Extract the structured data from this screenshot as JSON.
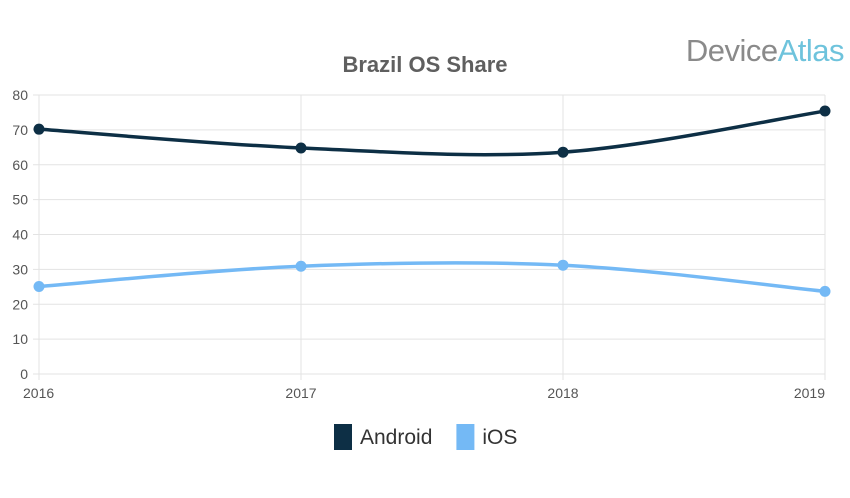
{
  "brand": {
    "logo_part1": "Device",
    "logo_part2": "Atlas",
    "logo_color1": "#8a8a8a",
    "logo_color2": "#6ec3dc"
  },
  "chart_data": {
    "type": "line",
    "title": "Brazil OS Share",
    "xlabel": "",
    "ylabel": "",
    "categories": [
      "2016",
      "2017",
      "2018",
      "2019"
    ],
    "ylim": [
      0,
      80
    ],
    "yticks": [
      0,
      10,
      20,
      30,
      40,
      50,
      60,
      70,
      80
    ],
    "grid": true,
    "legend_position": "bottom",
    "smooth": true,
    "series": [
      {
        "name": "Android",
        "color": "#0d2f45",
        "values": [
          70.2,
          64.8,
          63.6,
          75.4
        ]
      },
      {
        "name": "iOS",
        "color": "#74b9f5",
        "values": [
          25.1,
          30.9,
          31.2,
          23.7
        ]
      }
    ]
  }
}
